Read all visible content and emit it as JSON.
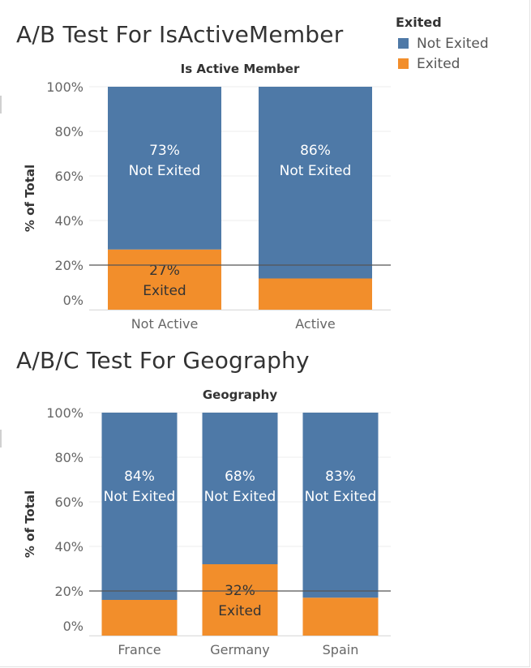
{
  "legend": {
    "title": "Exited",
    "items": [
      {
        "label": "Not Exited",
        "color": "#4e79a7"
      },
      {
        "label": "Exited",
        "color": "#f28e2b"
      }
    ]
  },
  "chart_data": [
    {
      "type": "bar",
      "stacked": true,
      "title": "A/B Test For IsActiveMember",
      "header": "Is Active Member",
      "ylabel": "% of Total",
      "ylim": [
        0,
        100
      ],
      "yticks": [
        "0%",
        "20%",
        "40%",
        "60%",
        "80%",
        "100%"
      ],
      "reference_line": 20,
      "categories": [
        "Not Active",
        "Active"
      ],
      "series": [
        {
          "name": "Exited",
          "color": "#f28e2b",
          "values": [
            27,
            14
          ],
          "labels": [
            [
              "27%",
              "Exited"
            ],
            null
          ]
        },
        {
          "name": "Not Exited",
          "color": "#4e79a7",
          "values": [
            73,
            86
          ],
          "labels": [
            [
              "73%",
              "Not Exited"
            ],
            [
              "86%",
              "Not Exited"
            ]
          ]
        }
      ]
    },
    {
      "type": "bar",
      "stacked": true,
      "title": "A/B/C Test For Geography",
      "header": "Geography",
      "ylabel": "% of Total",
      "ylim": [
        0,
        100
      ],
      "yticks": [
        "0%",
        "20%",
        "40%",
        "60%",
        "80%",
        "100%"
      ],
      "reference_line": 20,
      "categories": [
        "France",
        "Germany",
        "Spain"
      ],
      "series": [
        {
          "name": "Exited",
          "color": "#f28e2b",
          "values": [
            16,
            32,
            17
          ],
          "labels": [
            null,
            [
              "32%",
              "Exited"
            ],
            null
          ]
        },
        {
          "name": "Not Exited",
          "color": "#4e79a7",
          "values": [
            84,
            68,
            83
          ],
          "labels": [
            [
              "84%",
              "Not Exited"
            ],
            [
              "68%",
              "Not Exited"
            ],
            [
              "83%",
              "Not Exited"
            ]
          ]
        }
      ]
    }
  ]
}
